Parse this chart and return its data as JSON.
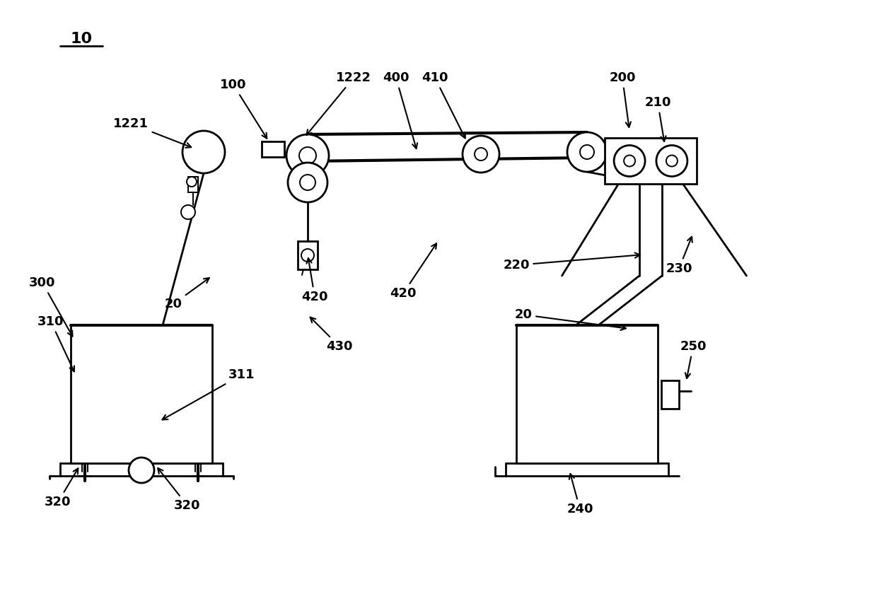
{
  "bg_color": "#ffffff",
  "lc": "#000000",
  "fig_w": 12.4,
  "fig_h": 8.57,
  "dpi": 100
}
